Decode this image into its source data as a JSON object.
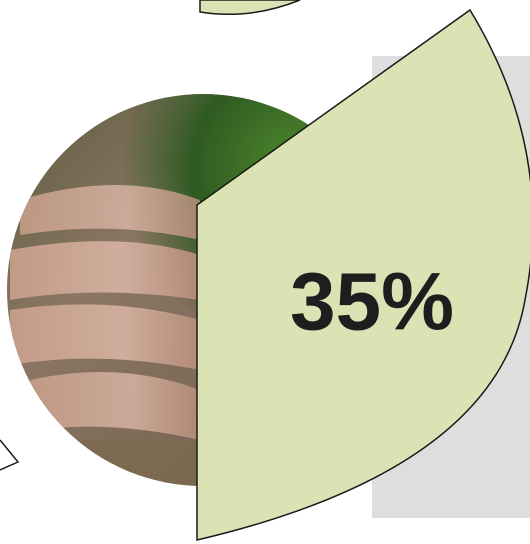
{
  "segment": {
    "label": "35%"
  }
}
